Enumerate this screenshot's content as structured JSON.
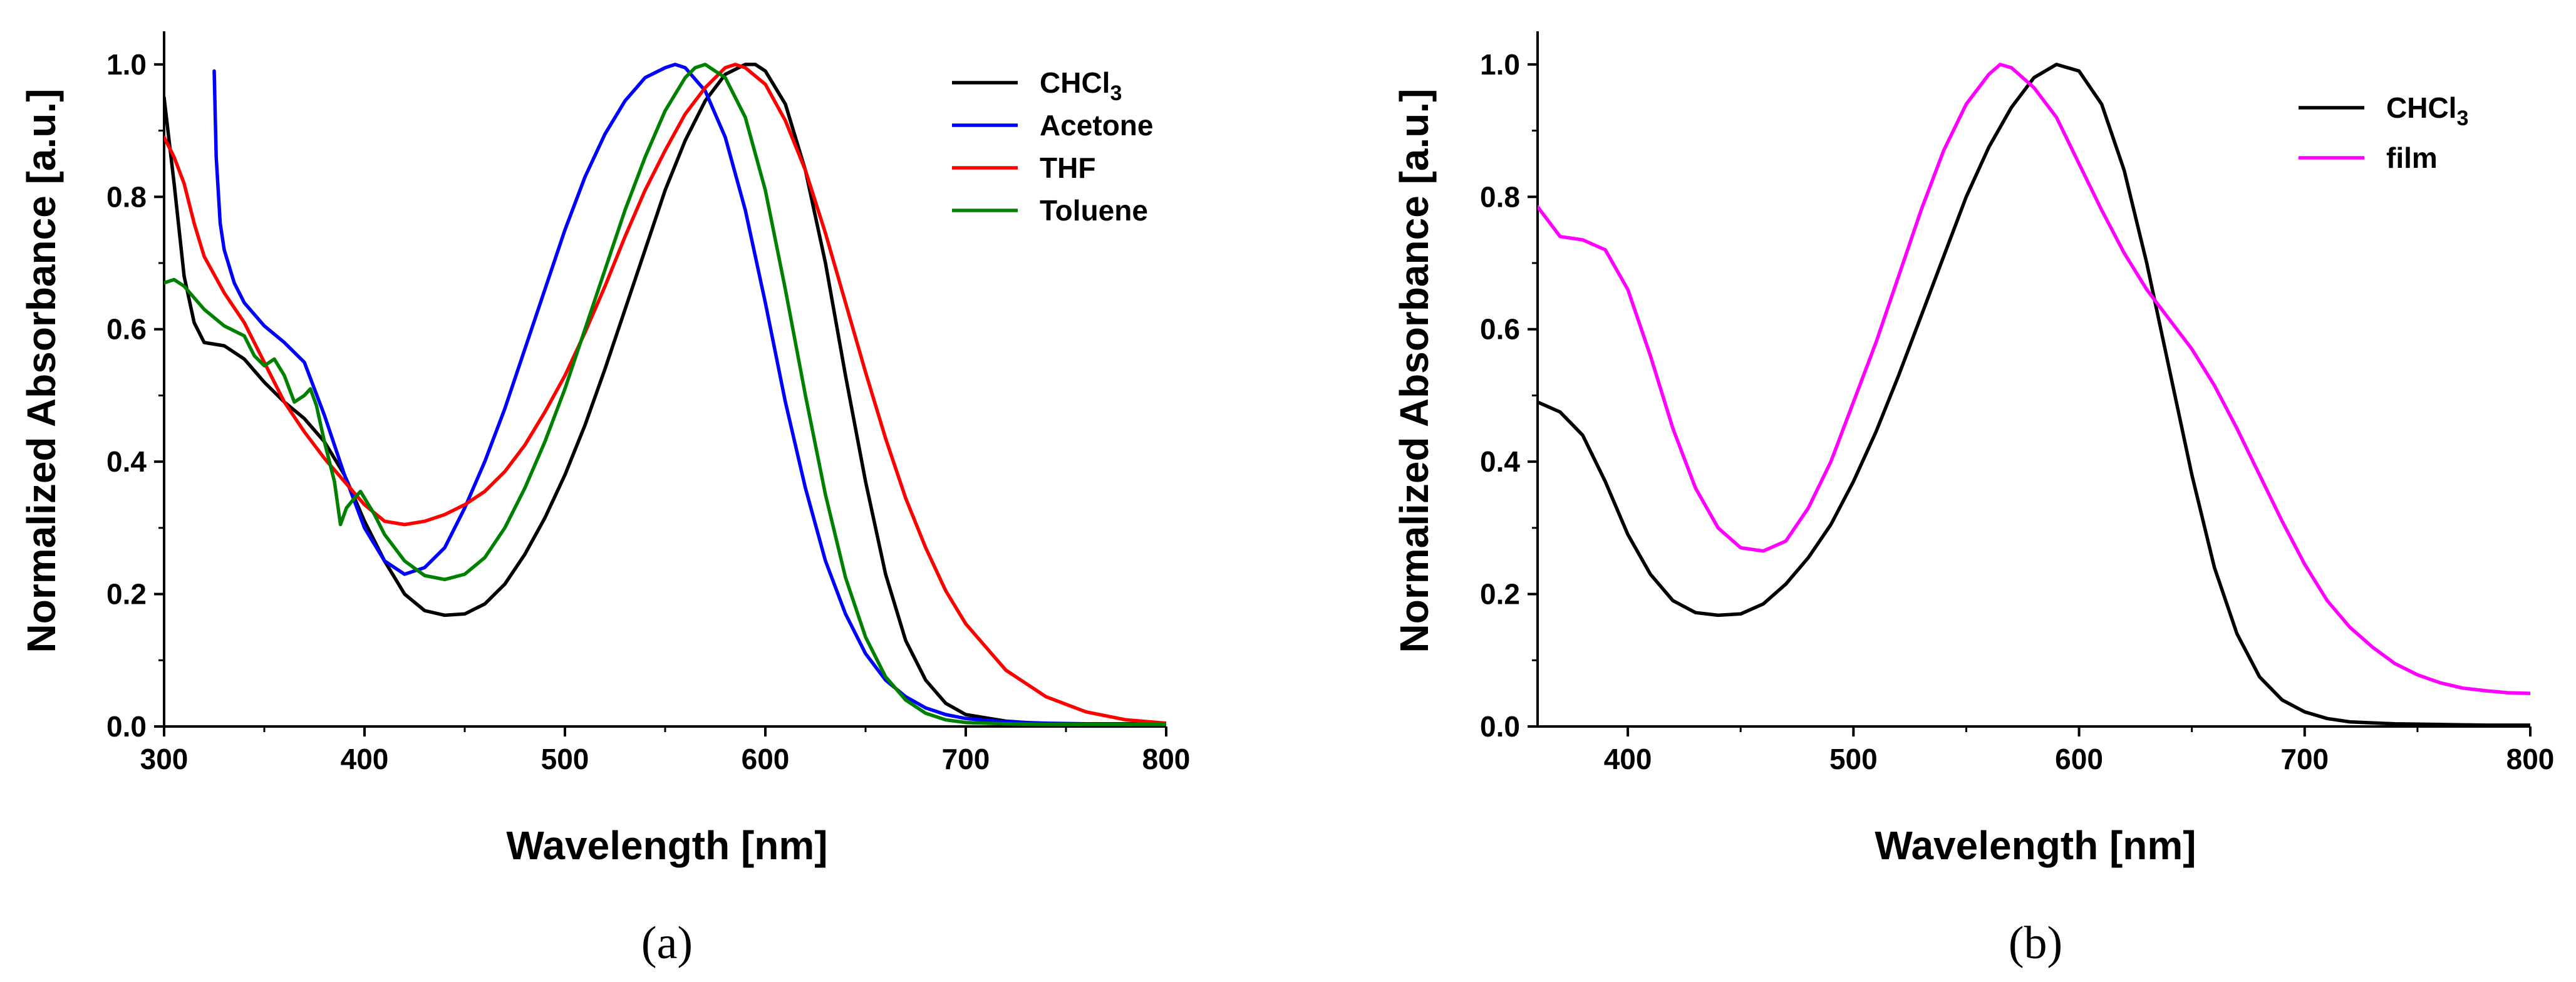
{
  "chart_data": [
    {
      "type": "line",
      "panel": "(a)",
      "xlabel": "Wavelength [nm]",
      "ylabel": "Normalized Absorbance [a.u.]",
      "xlim": [
        300,
        800
      ],
      "ylim": [
        0,
        1.05
      ],
      "xticks": [
        300,
        400,
        500,
        600,
        700,
        800
      ],
      "yticks": [
        0.0,
        0.2,
        0.4,
        0.6,
        0.8,
        1.0
      ],
      "xtick_labels": [
        "300",
        "400",
        "500",
        "600",
        "700",
        "800"
      ],
      "ytick_labels": [
        "0.0",
        "0.2",
        "0.4",
        "0.6",
        "0.8",
        "1.0"
      ],
      "legend_position": "top-right",
      "series": [
        {
          "name": "CHCl3",
          "label_main": "CHCl",
          "label_sub": "3",
          "color": "#000000",
          "x": [
            300,
            305,
            310,
            315,
            320,
            330,
            340,
            350,
            360,
            370,
            380,
            390,
            400,
            410,
            420,
            430,
            440,
            450,
            460,
            470,
            480,
            490,
            500,
            510,
            520,
            530,
            540,
            550,
            560,
            570,
            580,
            590,
            595,
            600,
            610,
            620,
            630,
            640,
            650,
            660,
            670,
            680,
            690,
            700,
            720,
            740,
            760,
            780,
            800
          ],
          "y": [
            0.95,
            0.82,
            0.68,
            0.61,
            0.58,
            0.575,
            0.555,
            0.52,
            0.49,
            0.465,
            0.43,
            0.38,
            0.31,
            0.25,
            0.2,
            0.175,
            0.168,
            0.17,
            0.185,
            0.215,
            0.26,
            0.315,
            0.38,
            0.455,
            0.54,
            0.63,
            0.72,
            0.81,
            0.885,
            0.945,
            0.985,
            1.0,
            1.0,
            0.99,
            0.94,
            0.84,
            0.7,
            0.53,
            0.37,
            0.23,
            0.13,
            0.07,
            0.035,
            0.018,
            0.008,
            0.004,
            0.003,
            0.002,
            0.002
          ]
        },
        {
          "name": "Acetone",
          "label_main": "Acetone",
          "label_sub": "",
          "color": "#0000ff",
          "x": [
            325,
            326,
            328,
            330,
            335,
            340,
            350,
            360,
            370,
            380,
            390,
            400,
            410,
            420,
            430,
            440,
            450,
            460,
            470,
            480,
            490,
            500,
            510,
            520,
            530,
            540,
            550,
            555,
            560,
            570,
            580,
            590,
            600,
            610,
            620,
            630,
            640,
            650,
            660,
            670,
            680,
            690,
            700,
            720,
            740,
            760,
            780,
            800
          ],
          "y": [
            0.99,
            0.86,
            0.76,
            0.72,
            0.67,
            0.64,
            0.605,
            0.58,
            0.55,
            0.47,
            0.38,
            0.3,
            0.25,
            0.23,
            0.24,
            0.27,
            0.33,
            0.4,
            0.48,
            0.57,
            0.66,
            0.75,
            0.83,
            0.895,
            0.945,
            0.98,
            0.995,
            1.0,
            0.995,
            0.96,
            0.89,
            0.78,
            0.64,
            0.49,
            0.36,
            0.25,
            0.17,
            0.11,
            0.07,
            0.045,
            0.028,
            0.018,
            0.012,
            0.007,
            0.005,
            0.004,
            0.004,
            0.004
          ]
        },
        {
          "name": "THF",
          "label_main": "THF",
          "label_sub": "",
          "color": "#ff0000",
          "x": [
            300,
            305,
            310,
            315,
            320,
            330,
            340,
            350,
            360,
            370,
            380,
            390,
            400,
            410,
            420,
            430,
            440,
            450,
            460,
            470,
            480,
            490,
            500,
            510,
            520,
            530,
            540,
            550,
            560,
            570,
            580,
            585,
            590,
            600,
            610,
            620,
            630,
            640,
            650,
            660,
            670,
            680,
            690,
            700,
            720,
            740,
            760,
            780,
            800
          ],
          "y": [
            0.89,
            0.86,
            0.82,
            0.76,
            0.71,
            0.655,
            0.61,
            0.55,
            0.49,
            0.445,
            0.405,
            0.37,
            0.335,
            0.31,
            0.305,
            0.31,
            0.32,
            0.335,
            0.355,
            0.385,
            0.425,
            0.475,
            0.53,
            0.595,
            0.665,
            0.74,
            0.81,
            0.87,
            0.925,
            0.965,
            0.995,
            1.0,
            0.995,
            0.97,
            0.915,
            0.84,
            0.745,
            0.64,
            0.535,
            0.435,
            0.345,
            0.27,
            0.205,
            0.155,
            0.085,
            0.045,
            0.022,
            0.01,
            0.005
          ]
        },
        {
          "name": "Toluene",
          "label_main": "Toluene",
          "label_sub": "",
          "color": "#008000",
          "x": [
            300,
            305,
            310,
            320,
            330,
            340,
            345,
            350,
            355,
            360,
            365,
            370,
            373,
            376,
            380,
            385,
            388,
            391,
            395,
            398,
            401,
            405,
            410,
            420,
            430,
            440,
            450,
            460,
            470,
            480,
            490,
            500,
            510,
            520,
            530,
            540,
            550,
            560,
            565,
            570,
            580,
            590,
            600,
            610,
            620,
            630,
            640,
            650,
            660,
            670,
            680,
            690,
            700,
            720,
            740,
            760,
            780,
            800
          ],
          "y": [
            0.67,
            0.675,
            0.665,
            0.63,
            0.605,
            0.59,
            0.56,
            0.545,
            0.555,
            0.53,
            0.49,
            0.5,
            0.51,
            0.485,
            0.43,
            0.37,
            0.305,
            0.33,
            0.345,
            0.355,
            0.34,
            0.32,
            0.29,
            0.25,
            0.228,
            0.222,
            0.23,
            0.255,
            0.3,
            0.36,
            0.43,
            0.51,
            0.6,
            0.69,
            0.78,
            0.86,
            0.93,
            0.98,
            0.995,
            1.0,
            0.98,
            0.92,
            0.81,
            0.66,
            0.5,
            0.35,
            0.225,
            0.135,
            0.075,
            0.04,
            0.02,
            0.01,
            0.006,
            0.004,
            0.003,
            0.003,
            0.003,
            0.003
          ]
        }
      ]
    },
    {
      "type": "line",
      "panel": "(b)",
      "xlabel": "Wavelength [nm]",
      "ylabel": "Normalized Absorbance [a.u.]",
      "xlim": [
        360,
        800
      ],
      "ylim": [
        0,
        1.05
      ],
      "xticks": [
        400,
        500,
        600,
        700,
        800
      ],
      "yticks": [
        0.0,
        0.2,
        0.4,
        0.6,
        0.8,
        1.0
      ],
      "xtick_labels": [
        "400",
        "500",
        "600",
        "700",
        "800"
      ],
      "ytick_labels": [
        "0.0",
        "0.2",
        "0.4",
        "0.6",
        "0.8",
        "1.0"
      ],
      "legend_position": "top-right",
      "series": [
        {
          "name": "CHCl3",
          "label_main": "CHCl",
          "label_sub": "3",
          "color": "#000000",
          "x": [
            360,
            370,
            380,
            390,
            400,
            410,
            420,
            430,
            440,
            450,
            460,
            470,
            480,
            490,
            500,
            510,
            520,
            530,
            540,
            550,
            560,
            570,
            580,
            590,
            600,
            610,
            620,
            630,
            640,
            650,
            660,
            670,
            680,
            690,
            700,
            710,
            720,
            740,
            760,
            780,
            800
          ],
          "y": [
            0.49,
            0.475,
            0.44,
            0.37,
            0.29,
            0.23,
            0.19,
            0.172,
            0.168,
            0.17,
            0.185,
            0.215,
            0.255,
            0.305,
            0.37,
            0.445,
            0.53,
            0.62,
            0.71,
            0.8,
            0.875,
            0.935,
            0.98,
            1.0,
            0.99,
            0.94,
            0.84,
            0.7,
            0.54,
            0.38,
            0.24,
            0.14,
            0.075,
            0.04,
            0.022,
            0.012,
            0.007,
            0.004,
            0.003,
            0.002,
            0.002
          ]
        },
        {
          "name": "film",
          "label_main": "film",
          "label_sub": "",
          "color": "#ff00ff",
          "x": [
            360,
            370,
            380,
            390,
            400,
            410,
            420,
            430,
            440,
            450,
            460,
            470,
            480,
            490,
            500,
            510,
            520,
            530,
            540,
            550,
            560,
            565,
            570,
            580,
            590,
            600,
            610,
            620,
            630,
            640,
            650,
            660,
            670,
            680,
            690,
            700,
            710,
            720,
            730,
            740,
            750,
            760,
            770,
            780,
            790,
            800
          ],
          "y": [
            0.785,
            0.74,
            0.735,
            0.72,
            0.66,
            0.56,
            0.45,
            0.36,
            0.3,
            0.27,
            0.265,
            0.28,
            0.33,
            0.4,
            0.49,
            0.58,
            0.68,
            0.78,
            0.87,
            0.94,
            0.985,
            1.0,
            0.995,
            0.965,
            0.92,
            0.85,
            0.78,
            0.715,
            0.66,
            0.615,
            0.57,
            0.515,
            0.45,
            0.38,
            0.31,
            0.245,
            0.19,
            0.15,
            0.12,
            0.095,
            0.078,
            0.066,
            0.058,
            0.054,
            0.051,
            0.05
          ]
        }
      ]
    }
  ]
}
